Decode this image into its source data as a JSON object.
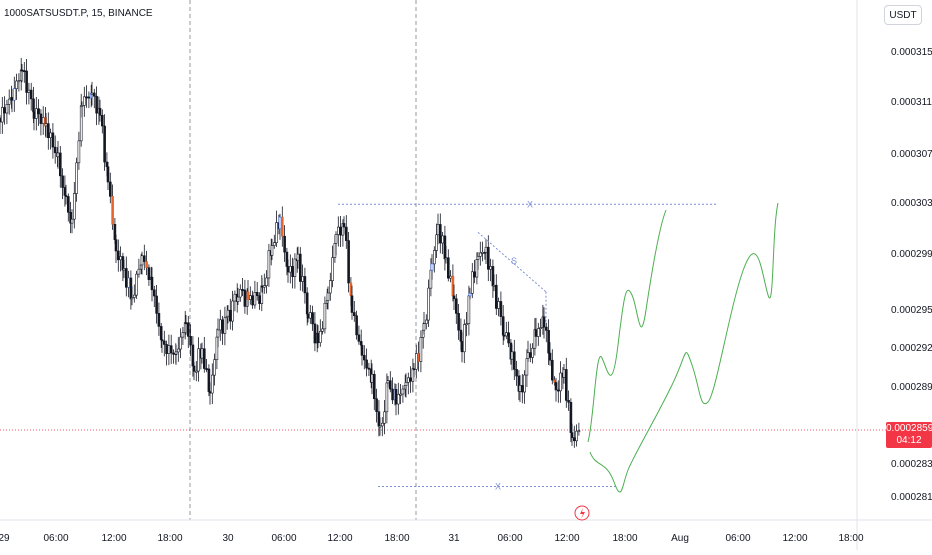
{
  "header": {
    "symbol": "1000SATSUSDT.P, 15, BINANCE",
    "currency": "USDT"
  },
  "current_price": {
    "value": "0.0002859",
    "countdown": "04:12",
    "color": "#f23645"
  },
  "chart_data": {
    "type": "candlestick",
    "title": "1000SATSUSDT.P, 15, BINANCE",
    "y_ticks": [
      "0.0003150",
      "0.0003110",
      "0.0003070",
      "0.0003030",
      "0.0002990",
      "0.0002950",
      "0.0002920",
      "0.0002890",
      "0.0002835",
      "0.0002810"
    ],
    "x_ticks": [
      "29",
      "06:00",
      "12:00",
      "18:00",
      "30",
      "06:00",
      "12:00",
      "18:00",
      "31",
      "06:00",
      "12:00",
      "18:00",
      "Aug",
      "06:00",
      "12:00",
      "18:00"
    ],
    "ylim": [
      0.0002795,
      0.00032
    ],
    "grid": false,
    "day_separators": [
      "30",
      "31"
    ],
    "annotations": [
      {
        "type": "horizontal_level",
        "label": "X",
        "price": 0.0003029
      },
      {
        "type": "horizontal_level",
        "label": "X",
        "price": 0.0002818
      },
      {
        "type": "trendline",
        "label": "S",
        "from_price": 0.0003007,
        "to_price": 0.0002963
      }
    ],
    "projection_paths": 2,
    "colors": {
      "candle": "#131722",
      "bear": "#e8642d",
      "bull": "#2962ff",
      "projection": "#4caf50",
      "levels": "#7e8fd6",
      "price_line": "#f23645"
    }
  }
}
